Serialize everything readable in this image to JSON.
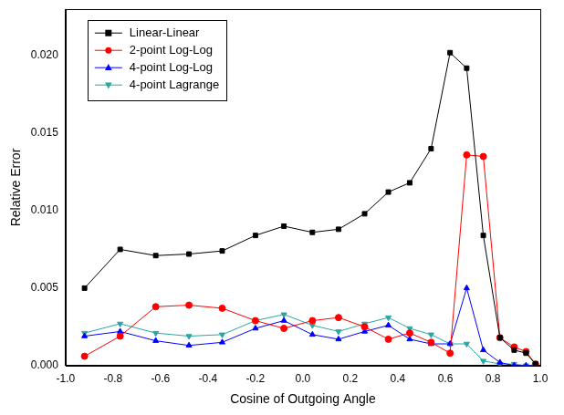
{
  "chart_data": {
    "type": "line",
    "x_label": "Cosine of Outgoing Angle",
    "y_label": "Relative Error",
    "x": [
      -0.92,
      -0.77,
      -0.62,
      -0.48,
      -0.34,
      -0.2,
      -0.08,
      0.04,
      0.15,
      0.26,
      0.36,
      0.45,
      0.54,
      0.62,
      0.69,
      0.76,
      0.83,
      0.89,
      0.94,
      0.98
    ],
    "series": [
      {
        "name": "Linear-Linear",
        "color": "#000000",
        "marker": "square",
        "values": [
          0.005,
          0.0075,
          0.0071,
          0.0072,
          0.0074,
          0.0084,
          0.009,
          0.0086,
          0.0088,
          0.0098,
          0.0112,
          0.0118,
          0.014,
          0.0202,
          0.0192,
          0.0084,
          0.0018,
          0.001,
          0.0008,
          0.0001
        ]
      },
      {
        "name": "2-point Log-Log",
        "color": "#ff0000",
        "marker": "circle",
        "values": [
          0.0006,
          0.0019,
          0.0038,
          0.0039,
          0.0037,
          0.0029,
          0.0024,
          0.0029,
          0.0031,
          0.0025,
          0.0017,
          0.0021,
          0.0015,
          0.0008,
          0.0136,
          0.0135,
          0.0018,
          0.0012,
          0.0009,
          0.0001
        ]
      },
      {
        "name": "4-point Log-Log",
        "color": "#0000ff",
        "marker": "triangle_up",
        "values": [
          0.0019,
          0.0022,
          0.0016,
          0.0013,
          0.0015,
          0.0024,
          0.0029,
          0.002,
          0.0017,
          0.0022,
          0.0026,
          0.0017,
          0.0014,
          0.0014,
          0.005,
          0.001,
          0.0002,
          0.0,
          0.0,
          0.0
        ]
      },
      {
        "name": "4-point Lagrange",
        "color": "#2aa6a6",
        "marker": "triangle_down",
        "values": [
          0.0021,
          0.0027,
          0.0021,
          0.0019,
          0.002,
          0.0029,
          0.0033,
          0.0026,
          0.0022,
          0.0027,
          0.0031,
          0.0024,
          0.002,
          0.0014,
          0.0014,
          0.0003,
          0.0001,
          0.0001,
          0.0,
          0.0
        ]
      }
    ],
    "xlim": [
      -1.0,
      1.0
    ],
    "xticks": [
      {
        "value": -1.0,
        "label": "-1.0"
      },
      -0.8,
      -0.6,
      -0.4,
      -0.2,
      {
        "value": 0.0,
        "label": "0.0"
      },
      0.2,
      0.4,
      0.6,
      0.8,
      {
        "value": 1.0,
        "label": "1.0"
      }
    ],
    "ylim": [
      0,
      0.023
    ],
    "yticks": [
      {
        "value": 0,
        "label": "0.000"
      },
      0.005,
      {
        "value": 0.01,
        "label": "0.010"
      },
      0.015,
      {
        "value": 0.02,
        "label": "0.020"
      }
    ],
    "grid": false,
    "legend": "upper left"
  }
}
